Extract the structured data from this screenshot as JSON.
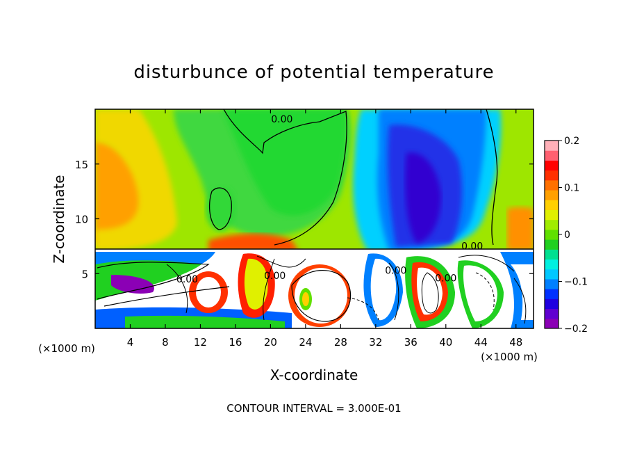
{
  "chart_data": {
    "type": "heatmap",
    "title": "disturbunce of potential temperature",
    "xlabel": "X-coordinate",
    "ylabel": "Z-coordinate",
    "x_unit_left": "(×1000 m)",
    "x_unit_right": "(×1000 m)",
    "xlim": [
      0,
      50
    ],
    "ylim": [
      0,
      20
    ],
    "x_ticks": [
      4,
      8,
      12,
      16,
      20,
      24,
      28,
      32,
      36,
      40,
      44,
      48
    ],
    "y_ticks": [
      5,
      10,
      15
    ],
    "footer": "CONTOUR INTERVAL = 3.000E-01",
    "colorbar": {
      "range": [
        -0.2,
        0.2
      ],
      "ticks": [
        {
          "value": 0.2,
          "label": "0.2"
        },
        {
          "value": 0.1,
          "label": "0.1"
        },
        {
          "value": 0,
          "label": "0"
        },
        {
          "value": -0.1,
          "label": "−0.1"
        },
        {
          "value": -0.2,
          "label": "−0.2"
        }
      ],
      "levels": [
        "#8b00b5",
        "#6000d0",
        "#2000e0",
        "#0030ff",
        "#0080ff",
        "#00c8ff",
        "#00f0e0",
        "#00e090",
        "#20d020",
        "#60e000",
        "#a0ec00",
        "#e0f000",
        "#ffd000",
        "#ffa000",
        "#ff7000",
        "#ff3000",
        "#ff0000",
        "#ff6070",
        "#ffb0b8"
      ]
    },
    "contour_labels": [
      {
        "text": "0.00",
        "x": 21.3,
        "y": 18.8
      },
      {
        "text": "0.00",
        "x": 10.5,
        "y": 4.2
      },
      {
        "text": "0.00",
        "x": 20.5,
        "y": 4.5
      },
      {
        "text": "0.00",
        "x": 34.3,
        "y": 5.0
      },
      {
        "text": "0.00",
        "x": 40.0,
        "y": 4.3
      },
      {
        "text": "0.00",
        "x": 43.0,
        "y": 7.2
      }
    ]
  }
}
